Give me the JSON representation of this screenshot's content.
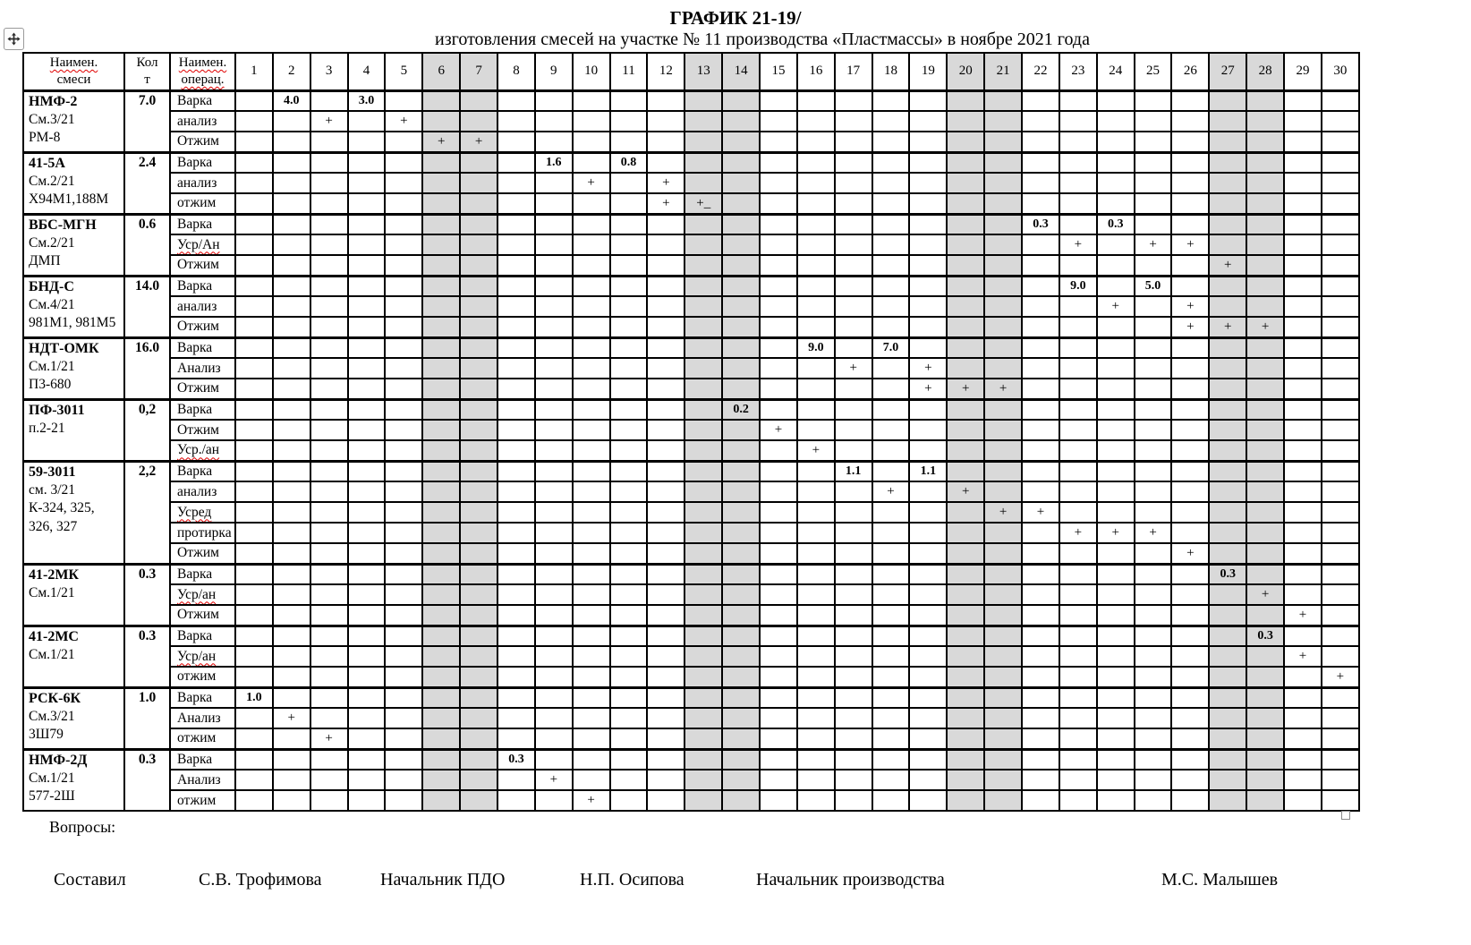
{
  "title": {
    "line1": "ГРАФИК 21-19/",
    "line2": "изготовления смесей на участке № 11 производства «Пластмассы» в ноябре 2021 года"
  },
  "table": {
    "header": {
      "name_lines": [
        "Наимен.",
        "смеси"
      ],
      "name_misspell": [
        true,
        false
      ],
      "qty_lines": [
        "Кол",
        "т"
      ],
      "qty_misspell": [
        false,
        false
      ],
      "op_lines": [
        "Наимен.",
        "операц."
      ],
      "op_misspell": [
        true,
        true
      ],
      "days": [
        1,
        2,
        3,
        4,
        5,
        6,
        7,
        8,
        9,
        10,
        11,
        12,
        13,
        14,
        15,
        16,
        17,
        18,
        19,
        20,
        21,
        22,
        23,
        24,
        25,
        26,
        27,
        28,
        29,
        30
      ],
      "weekend_days": [
        6,
        7,
        13,
        14,
        20,
        21,
        27,
        28
      ]
    },
    "groups": [
      {
        "name": "НМФ-2",
        "qty": "7.0",
        "details": [
          "См.3/21",
          "РМ-8"
        ],
        "operations": [
          {
            "label": "Варка",
            "misspell": false,
            "cells": {
              "2": "4.0",
              "4": "3.0"
            }
          },
          {
            "label": "анализ",
            "misspell": false,
            "cells": {
              "3": "+",
              "5": "+"
            }
          },
          {
            "label": "Отжим",
            "misspell": false,
            "cells": {
              "6": "+",
              "7": "+"
            }
          }
        ]
      },
      {
        "name": "41-5А",
        "qty": "2.4",
        "details": [
          "См.2/21",
          "Х94М1,188М"
        ],
        "operations": [
          {
            "label": "Варка",
            "misspell": false,
            "cells": {
              "9": "1.6",
              "11": "0.8"
            }
          },
          {
            "label": "анализ",
            "misspell": false,
            "cells": {
              "10": "+",
              "12": "+"
            }
          },
          {
            "label": "отжим",
            "misspell": false,
            "cells": {
              "12": "+",
              "13": "+_"
            }
          }
        ]
      },
      {
        "name": "ВБС-МГН",
        "qty": "0.6",
        "details": [
          "См.2/21",
          "ДМП"
        ],
        "operations": [
          {
            "label": "Варка",
            "misspell": false,
            "cells": {
              "22": "0.3",
              "24": "0.3"
            }
          },
          {
            "label": "Уср/Ан",
            "misspell": true,
            "cells": {
              "23": "+",
              "25": "+",
              "26": "+"
            }
          },
          {
            "label": "Отжим",
            "misspell": false,
            "cells": {
              "27": "+"
            }
          }
        ]
      },
      {
        "name": "БНД-С",
        "qty": "14.0",
        "details": [
          "См.4/21",
          "981М1, 981М5"
        ],
        "operations": [
          {
            "label": "Варка",
            "misspell": false,
            "cells": {
              "23": "9.0",
              "25": "5.0"
            }
          },
          {
            "label": "анализ",
            "misspell": false,
            "cells": {
              "24": "+",
              "26": "+"
            }
          },
          {
            "label": "Отжим",
            "misspell": false,
            "cells": {
              "26": "+",
              "27": "+",
              "28": "+"
            }
          }
        ]
      },
      {
        "name": "НДТ-ОМК",
        "qty": "16.0",
        "details": [
          "См.1/21",
          "П3-680"
        ],
        "operations": [
          {
            "label": "Варка",
            "misspell": false,
            "cells": {
              "16": "9.0",
              "18": "7.0"
            }
          },
          {
            "label": "Анализ",
            "misspell": false,
            "cells": {
              "17": "+",
              "19": "+"
            }
          },
          {
            "label": "Отжим",
            "misspell": false,
            "cells": {
              "19": "+",
              "20": "+",
              "21": "+"
            }
          }
        ]
      },
      {
        "name": "ПФ-3011",
        "qty": "0,2",
        "details": [
          "п.2-21"
        ],
        "operations": [
          {
            "label": "Варка",
            "misspell": false,
            "cells": {
              "14": "0.2"
            }
          },
          {
            "label": "Отжим",
            "misspell": false,
            "cells": {
              "15": "+"
            }
          },
          {
            "label": "Уср./ан",
            "misspell": true,
            "cells": {
              "16": "+"
            }
          }
        ]
      },
      {
        "name": "59-3011",
        "qty": "2,2",
        "details": [
          "см. 3/21",
          "К-324, 325,",
          "326, 327"
        ],
        "operations": [
          {
            "label": "Варка",
            "misspell": false,
            "cells": {
              "17": "1.1",
              "19": "1.1"
            }
          },
          {
            "label": "анализ",
            "misspell": false,
            "cells": {
              "18": "+",
              "20": "+"
            }
          },
          {
            "label": "Усред",
            "misspell": true,
            "cells": {
              "21": "+",
              "22": "+"
            }
          },
          {
            "label": "протирка",
            "misspell": false,
            "cells": {
              "23": "+",
              "24": "+",
              "25": "+"
            }
          },
          {
            "label": "Отжим",
            "misspell": false,
            "cells": {
              "26": "+"
            }
          }
        ]
      },
      {
        "name": "41-2МК",
        "qty": "0.3",
        "details": [
          "См.1/21"
        ],
        "operations": [
          {
            "label": "Варка",
            "misspell": false,
            "cells": {
              "27": "0.3"
            }
          },
          {
            "label": "Уср/ан",
            "misspell": true,
            "cells": {
              "28": "+"
            }
          },
          {
            "label": "Отжим",
            "misspell": false,
            "cells": {
              "29": "+"
            }
          }
        ]
      },
      {
        "name": "41-2МС",
        "qty": "0.3",
        "details": [
          "См.1/21"
        ],
        "operations": [
          {
            "label": "Варка",
            "misspell": false,
            "cells": {
              "28": "0.3"
            }
          },
          {
            "label": "Уср/ан",
            "misspell": true,
            "cells": {
              "29": "+"
            }
          },
          {
            "label": "отжим",
            "misspell": false,
            "cells": {
              "30": "+"
            }
          }
        ]
      },
      {
        "name": "РСК-6К",
        "qty": "1.0",
        "details": [
          "См.3/21",
          "3Ш79"
        ],
        "operations": [
          {
            "label": "Варка",
            "misspell": false,
            "cells": {
              "1": "1.0"
            }
          },
          {
            "label": "Анализ",
            "misspell": false,
            "cells": {
              "2": "+"
            }
          },
          {
            "label": "отжим",
            "misspell": false,
            "cells": {
              "3": "+"
            }
          }
        ]
      },
      {
        "name": "НМФ-2Д",
        "qty": "0.3",
        "details": [
          "См.1/21",
          "577-2Ш"
        ],
        "operations": [
          {
            "label": "Варка",
            "misspell": false,
            "cells": {
              "8": "0.3"
            }
          },
          {
            "label": "Анализ",
            "misspell": false,
            "cells": {
              "9": "+"
            }
          },
          {
            "label": "отжим",
            "misspell": false,
            "cells": {
              "10": "+"
            }
          }
        ]
      }
    ]
  },
  "footer": {
    "questions_label": "Вопросы:"
  },
  "signatures": [
    "Составил",
    "С.В. Трофимова",
    "Начальник ПДО",
    "Н.П. Осипова",
    "Начальник производства",
    "М.С. Малышев"
  ],
  "colors": {
    "weekend_shade": "#d9d9d9",
    "misspell_underline": "#e00000"
  }
}
